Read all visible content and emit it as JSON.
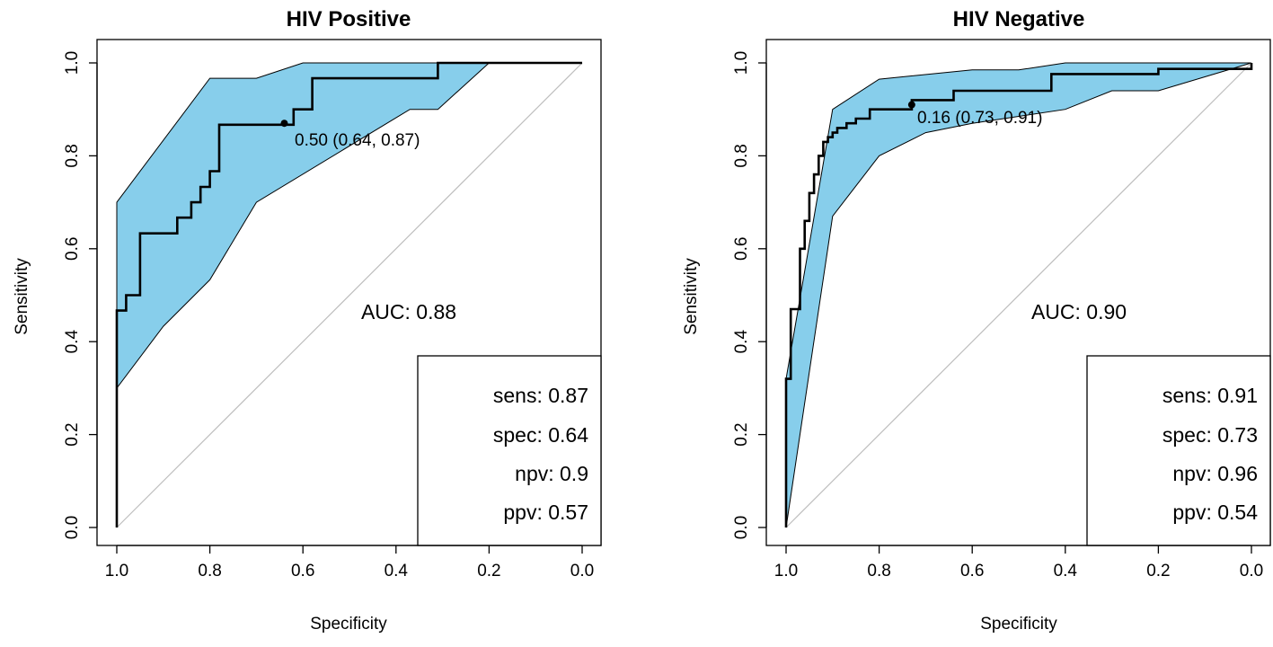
{
  "chart_data": [
    {
      "type": "line",
      "title": "HIV Positive",
      "xlabel": "Specificity",
      "ylabel": "Sensitivity",
      "xlim": [
        1.0,
        0.0
      ],
      "ylim": [
        0.0,
        1.0
      ],
      "x_tick_labels": [
        "1.0",
        "0.8",
        "0.6",
        "0.4",
        "0.2",
        "0.0"
      ],
      "y_tick_labels": [
        "0.0",
        "0.2",
        "0.4",
        "0.6",
        "0.8",
        "1.0"
      ],
      "auc_label": "AUC: 0.88",
      "threshold": {
        "specificity": 0.64,
        "sensitivity": 0.87,
        "label": "0.50 (0.64, 0.87)"
      },
      "stats": [
        {
          "name": "sens",
          "text": "sens: 0.87"
        },
        {
          "name": "spec",
          "text": "spec: 0.64"
        },
        {
          "name": "npv",
          "text": "npv: 0.9"
        },
        {
          "name": "ppv",
          "text": "ppv: 0.57"
        }
      ],
      "series": [
        {
          "name": "ROC curve",
          "specificity": [
            1.0,
            1.0,
            0.98,
            0.98,
            0.95,
            0.95,
            0.87,
            0.87,
            0.84,
            0.84,
            0.82,
            0.82,
            0.8,
            0.8,
            0.78,
            0.78,
            0.64,
            0.62,
            0.62,
            0.58,
            0.58,
            0.31,
            0.31,
            0.0
          ],
          "sensitivity": [
            0.0,
            0.467,
            0.467,
            0.5,
            0.5,
            0.633,
            0.633,
            0.667,
            0.667,
            0.7,
            0.7,
            0.733,
            0.733,
            0.767,
            0.767,
            0.867,
            0.867,
            0.867,
            0.9,
            0.9,
            0.967,
            0.967,
            1.0,
            1.0
          ]
        },
        {
          "name": "CI upper",
          "specificity": [
            1.0,
            0.8,
            0.7,
            0.6,
            0.2
          ],
          "sensitivity": [
            0.7,
            0.967,
            0.967,
            1.0,
            1.0
          ]
        },
        {
          "name": "CI lower",
          "specificity": [
            1.0,
            0.9,
            0.8,
            0.7,
            0.37,
            0.31,
            0.2
          ],
          "sensitivity": [
            0.3,
            0.433,
            0.533,
            0.7,
            0.9,
            0.9,
            1.0
          ]
        }
      ]
    },
    {
      "type": "line",
      "title": "HIV Negative",
      "xlabel": "Specificity",
      "ylabel": "Sensitivity",
      "xlim": [
        1.0,
        0.0
      ],
      "ylim": [
        0.0,
        1.0
      ],
      "x_tick_labels": [
        "1.0",
        "0.8",
        "0.6",
        "0.4",
        "0.2",
        "0.0"
      ],
      "y_tick_labels": [
        "0.0",
        "0.2",
        "0.4",
        "0.6",
        "0.8",
        "1.0"
      ],
      "auc_label": "AUC: 0.90",
      "threshold": {
        "specificity": 0.73,
        "sensitivity": 0.91,
        "label": "0.16 (0.73, 0.91)"
      },
      "stats": [
        {
          "name": "sens",
          "text": "sens: 0.91"
        },
        {
          "name": "spec",
          "text": "spec: 0.73"
        },
        {
          "name": "npv",
          "text": "npv: 0.96"
        },
        {
          "name": "ppv",
          "text": "ppv: 0.54"
        }
      ],
      "series": [
        {
          "name": "ROC curve",
          "specificity": [
            1.0,
            1.0,
            0.99,
            0.99,
            0.97,
            0.97,
            0.96,
            0.96,
            0.95,
            0.95,
            0.94,
            0.94,
            0.93,
            0.93,
            0.92,
            0.92,
            0.91,
            0.91,
            0.9,
            0.9,
            0.89,
            0.89,
            0.87,
            0.87,
            0.85,
            0.85,
            0.82,
            0.82,
            0.8,
            0.8,
            0.73,
            0.73,
            0.64,
            0.64,
            0.43,
            0.43,
            0.2,
            0.2,
            0.0,
            0.0
          ],
          "sensitivity": [
            0.0,
            0.32,
            0.32,
            0.47,
            0.47,
            0.6,
            0.6,
            0.66,
            0.66,
            0.72,
            0.72,
            0.76,
            0.76,
            0.8,
            0.8,
            0.83,
            0.83,
            0.84,
            0.84,
            0.85,
            0.85,
            0.86,
            0.86,
            0.87,
            0.87,
            0.88,
            0.88,
            0.9,
            0.9,
            0.9,
            0.9,
            0.92,
            0.92,
            0.94,
            0.94,
            0.976,
            0.976,
            0.987,
            0.987,
            1.0
          ]
        },
        {
          "name": "CI upper",
          "specificity": [
            1.0,
            0.9,
            0.8,
            0.6,
            0.5,
            0.4,
            0.2,
            0.0
          ],
          "sensitivity": [
            0.32,
            0.9,
            0.965,
            0.985,
            0.985,
            1.0,
            1.0,
            1.0
          ]
        },
        {
          "name": "CI lower",
          "specificity": [
            1.0,
            0.9,
            0.8,
            0.7,
            0.6,
            0.4,
            0.3,
            0.2,
            0.0
          ],
          "sensitivity": [
            0.0,
            0.67,
            0.8,
            0.85,
            0.87,
            0.9,
            0.94,
            0.94,
            1.0
          ]
        }
      ]
    }
  ],
  "colors": {
    "ci_fill": "#87CEEB",
    "curve": "#000000",
    "diagonal": "#BEBEBE"
  }
}
